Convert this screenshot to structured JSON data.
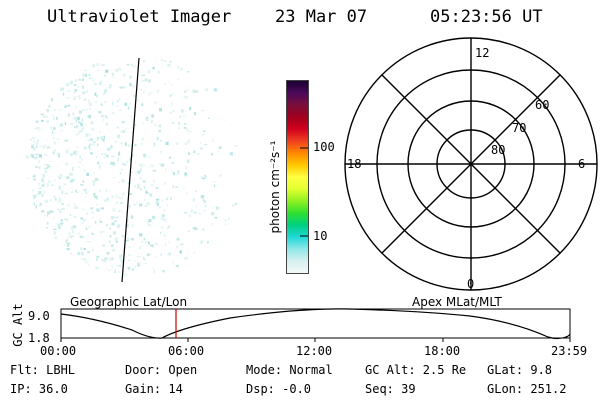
{
  "header": {
    "instrument": "Ultraviolet Imager",
    "date": "23 Mar 07",
    "time": "05:23:56 UT"
  },
  "colorbar": {
    "label": "photon cm⁻²s⁻¹",
    "tick_100": "100",
    "tick_10": "10",
    "colors": [
      "#1a0033",
      "#4b0a5a",
      "#7a0e3a",
      "#a1001e",
      "#d0001e",
      "#f04020",
      "#ff8800",
      "#ffc800",
      "#ffff40",
      "#e0ff30",
      "#90f020",
      "#30e030",
      "#00d080",
      "#20d8d8",
      "#90e8e8",
      "#d8f0f0",
      "#f4f8f8"
    ]
  },
  "polar": {
    "labels": {
      "top": "12",
      "bottom": "0",
      "left": "18",
      "right": "6",
      "lat60": "60",
      "lat70": "70",
      "lat80": "80"
    }
  },
  "timeline": {
    "left_title": "Geographic Lat/Lon",
    "right_title": "Apex MLat/MLT",
    "y_axis_label": "GC Alt",
    "y_ticks": [
      "9.0",
      "1.8"
    ],
    "x_ticks": [
      "00:00",
      "06:00",
      "12:00",
      "18:00",
      "23:59"
    ],
    "marker_color": "#d00000"
  },
  "info": {
    "flt": "Flt: LBHL",
    "ip": "IP: 36.0",
    "door": "Door: Open",
    "gain": "Gain: 14",
    "mode": "Mode: Normal",
    "dsp": "Dsp:   -0.0",
    "gcalt": "GC Alt: 2.5 Re",
    "seq": "Seq: 39",
    "glat": "GLat:   9.8",
    "glon": "GLon: 251.2"
  }
}
